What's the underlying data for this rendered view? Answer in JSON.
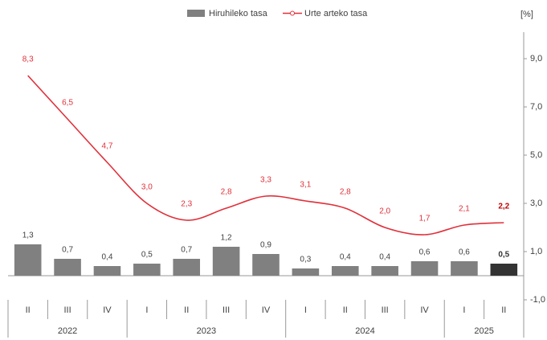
{
  "chart_data": {
    "type": "bar_line",
    "y_unit": "[%]",
    "groups": [
      {
        "name": "2022",
        "categories": [
          "II",
          "III",
          "IV"
        ]
      },
      {
        "name": "2023",
        "categories": [
          "I",
          "II",
          "III",
          "IV"
        ]
      },
      {
        "name": "2024",
        "categories": [
          "I",
          "II",
          "III",
          "IV"
        ]
      },
      {
        "name": "2025",
        "categories": [
          "I",
          "II"
        ]
      }
    ],
    "series": [
      {
        "name": "Hiruhileko tasa",
        "type": "bar",
        "color": "#808080",
        "highlight_color": "#333333",
        "values": [
          1.3,
          0.7,
          0.4,
          0.5,
          0.7,
          1.2,
          0.9,
          0.3,
          0.4,
          0.4,
          0.6,
          0.6,
          0.5
        ],
        "value_labels": [
          "1,3",
          "0,7",
          "0,4",
          "0,5",
          "0,7",
          "1,2",
          "0,9",
          "0,3",
          "0,4",
          "0,4",
          "0,6",
          "0,6",
          "0,5"
        ]
      },
      {
        "name": "Urte arteko tasa",
        "type": "line",
        "color": "#e0303a",
        "highlight_color": "#c00000",
        "values": [
          8.3,
          6.5,
          4.7,
          3.0,
          2.3,
          2.8,
          3.3,
          3.1,
          2.8,
          2.0,
          1.7,
          2.1,
          2.2
        ],
        "value_labels": [
          "8,3",
          "6,5",
          "4,7",
          "3,0",
          "2,3",
          "2,8",
          "3,3",
          "3,1",
          "2,8",
          "2,0",
          "1,7",
          "2,1",
          "2,2"
        ]
      }
    ],
    "ylim": [
      -1,
      10
    ],
    "yticks": [
      {
        "value": -1,
        "label": "-1,0"
      },
      {
        "value": 1,
        "label": "1,0"
      },
      {
        "value": 3,
        "label": "3,0"
      },
      {
        "value": 5,
        "label": "5,0"
      },
      {
        "value": 7,
        "label": "7,0"
      },
      {
        "value": 9,
        "label": "9,0"
      }
    ]
  }
}
